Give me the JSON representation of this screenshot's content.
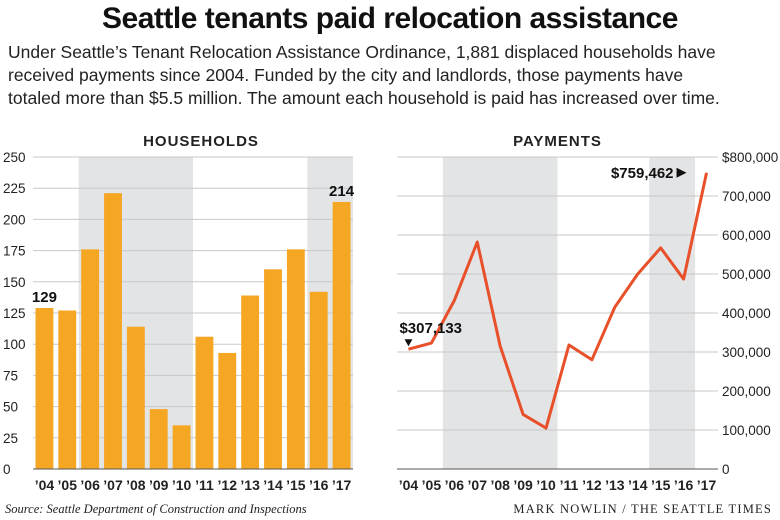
{
  "title": "Seattle tenants paid relocation assistance",
  "intro": [
    "Under Seattle’s Tenant Relocation Assistance Ordinance, 1,881 displaced households have",
    "received payments since 2004. Funded by the city and landlords, those payments have",
    "totaled more than $5.5 million. The amount each household is paid has increased over time."
  ],
  "source": "Source: Seattle Department of Construction and Inspections",
  "credit": "MARK NOWLIN / THE SEATTLE TIMES",
  "colors": {
    "bar": "#f5a623",
    "line": "#e8502a",
    "shade": "#e3e4e6",
    "grid": "#c8c8c8"
  },
  "chart_data": [
    {
      "type": "bar",
      "title": "HOUSEHOLDS",
      "categories": [
        "’04",
        "’05",
        "’06",
        "’07",
        "’08",
        "’09",
        "’10",
        "’11",
        "’12",
        "’13",
        "’14",
        "’15",
        "’16",
        "’17"
      ],
      "values": [
        129,
        127,
        176,
        221,
        114,
        48,
        35,
        106,
        93,
        139,
        160,
        176,
        142,
        214
      ],
      "ylim": [
        0,
        250
      ],
      "yticks": [
        "0",
        "25",
        "50",
        "75",
        "100",
        "125",
        "150",
        "175",
        "200",
        "225",
        "250"
      ],
      "shaded_ranges": [
        [
          "’06",
          "’10"
        ],
        [
          "’16",
          "’17"
        ]
      ],
      "annotations": [
        {
          "category": "’04",
          "text": "129"
        },
        {
          "category": "’17",
          "text": "214"
        }
      ],
      "grid": true
    },
    {
      "type": "line",
      "title": "PAYMENTS",
      "categories": [
        "’04",
        "’05",
        "’06",
        "’07",
        "’08",
        "’09",
        "’10",
        "’11",
        "’12",
        "’13",
        "’14",
        "’15",
        "’16",
        "’17"
      ],
      "values": [
        307133,
        323000,
        432000,
        582000,
        315000,
        140000,
        105000,
        318000,
        280000,
        415000,
        500000,
        567000,
        487000,
        759462
      ],
      "ylim": [
        0,
        800000
      ],
      "yticks": [
        "0",
        "100,000",
        "200,000",
        "300,000",
        "400,000",
        "500,000",
        "600,000",
        "700,000",
        "$800,000"
      ],
      "shaded_ranges": [
        [
          "’06",
          "’10"
        ],
        [
          "’15",
          "’16"
        ]
      ],
      "annotations": [
        {
          "category": "’04",
          "text": "$307,133"
        },
        {
          "category": "’17",
          "text": "$759,462"
        }
      ],
      "grid": true
    }
  ]
}
